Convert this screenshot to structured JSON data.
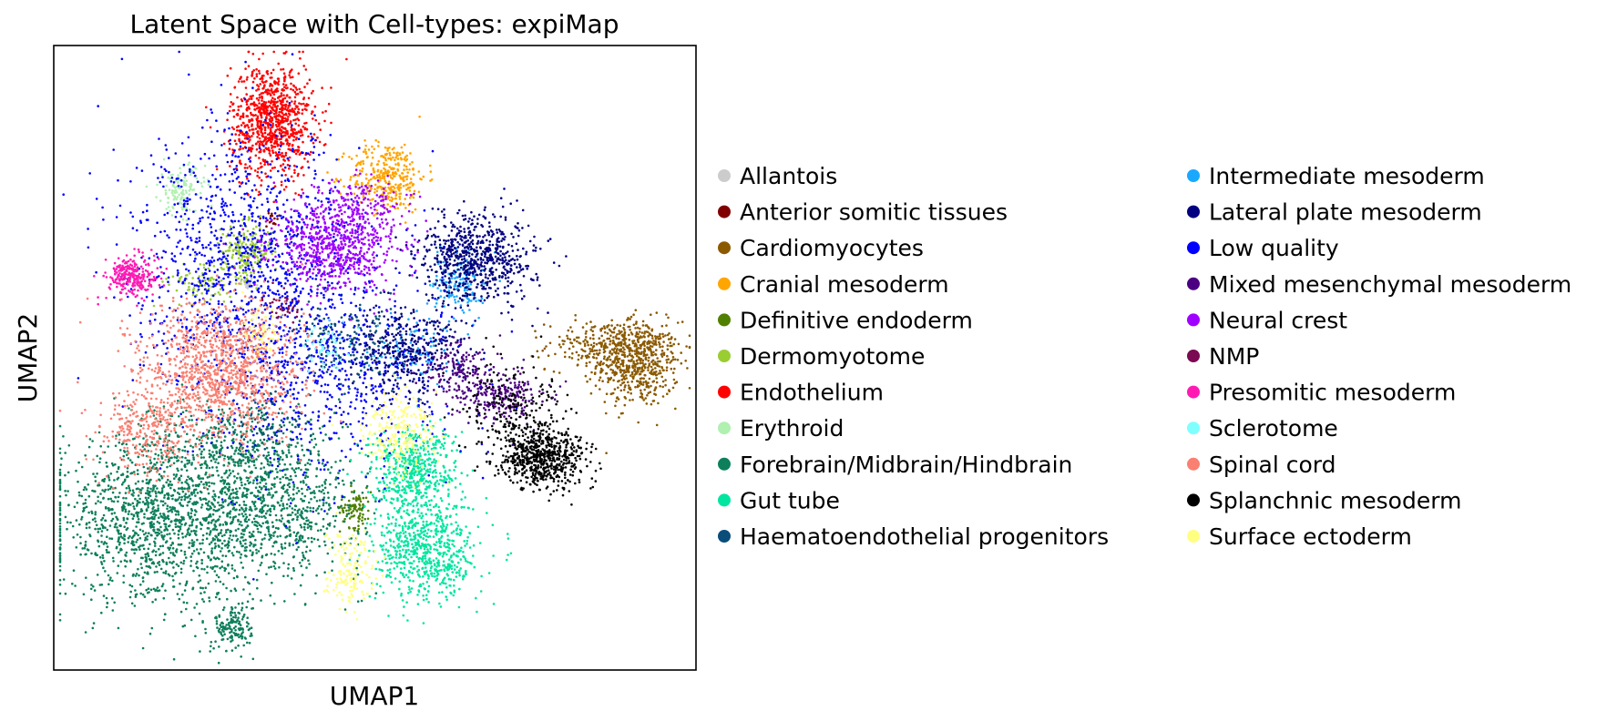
{
  "chart_data": {
    "type": "scatter",
    "title": "Latent Space with Cell-types: expiMap",
    "xlabel": "UMAP1",
    "ylabel": "UMAP2",
    "grid": false,
    "ticks": false,
    "legend_placement": "right",
    "xlim": [
      0,
      100
    ],
    "ylim": [
      0,
      100
    ],
    "series": [
      {
        "name": "Allantois",
        "color": "#cccccc",
        "clusters": [
          [
            30,
            62,
            0.6,
            0.5,
            20
          ]
        ]
      },
      {
        "name": "Anterior somitic tissues",
        "color": "#800000",
        "clusters": [
          [
            34,
            72,
            1.0,
            0.8,
            15
          ]
        ]
      },
      {
        "name": "Cardiomyocytes",
        "color": "#8B5A00",
        "clusters": [
          [
            91,
            49,
            3.2,
            3.4,
            520
          ],
          [
            86,
            52,
            4.6,
            2.0,
            260
          ]
        ]
      },
      {
        "name": "Cranial mesoderm",
        "color": "#FFA500",
        "clusters": [
          [
            52,
            79,
            3.0,
            2.8,
            330
          ]
        ]
      },
      {
        "name": "Definitive endoderm",
        "color": "#4F8000",
        "clusters": [
          [
            47,
            26,
            1.2,
            1.6,
            90
          ]
        ]
      },
      {
        "name": "Dermomyotome",
        "color": "#9ACD32",
        "clusters": [
          [
            30,
            67,
            2.0,
            2.2,
            200
          ],
          [
            23,
            62,
            2.5,
            2.0,
            80
          ]
        ]
      },
      {
        "name": "Endothelium",
        "color": "#FF0000",
        "clusters": [
          [
            34,
            88,
            3.2,
            4.5,
            900
          ]
        ]
      },
      {
        "name": "Erythroid",
        "color": "#B0F0B0",
        "clusters": [
          [
            20,
            77,
            1.8,
            2.0,
            130
          ]
        ]
      },
      {
        "name": "Forebrain/Midbrain/Hindbrain",
        "color": "#0D7F5B",
        "clusters": [
          [
            17,
            24,
            8.5,
            6.5,
            1500
          ],
          [
            35,
            26,
            6.5,
            5.5,
            700
          ],
          [
            28,
            7,
            1.5,
            2.0,
            150
          ],
          [
            28,
            36,
            6.0,
            4.0,
            350
          ]
        ]
      },
      {
        "name": "Gut tube",
        "color": "#00E6A0",
        "clusters": [
          [
            56,
            32,
            3.5,
            3.5,
            550
          ],
          [
            58,
            19,
            4.0,
            4.0,
            650
          ]
        ]
      },
      {
        "name": "Haematoendothelial progenitors",
        "color": "#0A4D7A",
        "clusters": [
          [
            46,
            52,
            4.0,
            3.0,
            200
          ],
          [
            34,
            40,
            3.0,
            3.0,
            80
          ]
        ]
      },
      {
        "name": "Intermediate mesoderm",
        "color": "#1AA8FF",
        "clusters": [
          [
            63,
            62,
            2.0,
            2.5,
            150
          ],
          [
            56,
            52,
            3.0,
            3.0,
            100
          ]
        ]
      },
      {
        "name": "Lateral plate mesoderm",
        "color": "#000080",
        "clusters": [
          [
            66,
            66,
            4.5,
            3.5,
            700
          ],
          [
            55,
            51,
            4.5,
            3.5,
            380
          ]
        ]
      },
      {
        "name": "Low quality",
        "color": "#0000FF",
        "clusters": [
          [
            30,
            66,
            9.0,
            10.0,
            1100
          ],
          [
            42,
            48,
            10.0,
            9.0,
            700
          ]
        ]
      },
      {
        "name": "Mixed mesenchymal mesoderm",
        "color": "#4B0082",
        "clusters": [
          [
            70,
            44,
            3.5,
            2.0,
            220
          ],
          [
            63,
            48,
            3.0,
            2.5,
            140
          ]
        ]
      },
      {
        "name": "Neural crest",
        "color": "#A000FF",
        "clusters": [
          [
            44,
            68,
            5.0,
            3.5,
            700
          ],
          [
            48,
            75,
            3.0,
            2.0,
            120
          ]
        ]
      },
      {
        "name": "NMP",
        "color": "#7A0A52",
        "clusters": [
          [
            36,
            58,
            1.5,
            1.5,
            40
          ]
        ]
      },
      {
        "name": "Presomitic mesoderm",
        "color": "#FF1AB4",
        "clusters": [
          [
            12,
            63,
            2.0,
            1.6,
            260
          ]
        ]
      },
      {
        "name": "Sclerotome",
        "color": "#7FFFFF",
        "clusters": [
          [
            42,
            52,
            2.0,
            2.0,
            50
          ]
        ]
      },
      {
        "name": "Spinal cord",
        "color": "#FA8072",
        "clusters": [
          [
            26,
            48,
            6.0,
            5.5,
            1200
          ],
          [
            15,
            38,
            4.0,
            3.5,
            300
          ]
        ]
      },
      {
        "name": "Splanchnic mesoderm",
        "color": "#000000",
        "clusters": [
          [
            76,
            34,
            3.5,
            2.5,
            650
          ],
          [
            72,
            42,
            4.0,
            4.0,
            200
          ]
        ]
      },
      {
        "name": "Surface ectoderm",
        "color": "#FFFF80",
        "clusters": [
          [
            54,
            38,
            3.0,
            3.0,
            250
          ],
          [
            46,
            16,
            2.0,
            3.0,
            150
          ],
          [
            32,
            54,
            2.0,
            2.0,
            60
          ]
        ]
      }
    ]
  }
}
